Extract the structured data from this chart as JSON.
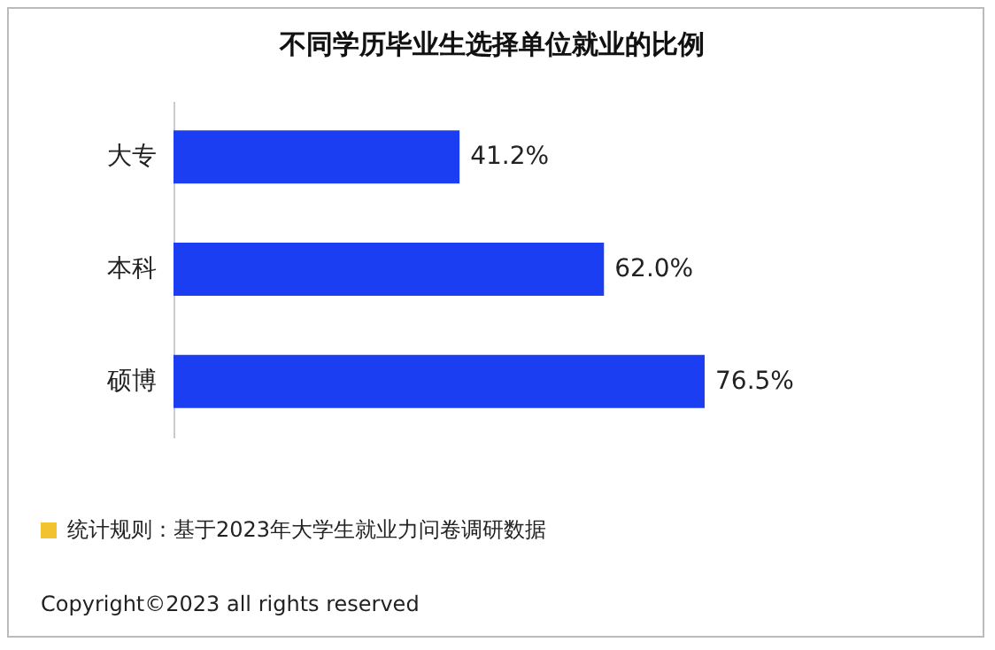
{
  "chart_data": {
    "type": "bar",
    "orientation": "horizontal",
    "title": "不同学历毕业生选择单位就业的比例",
    "categories": [
      "大专",
      "本科",
      "硕博"
    ],
    "values": [
      41.2,
      62.0,
      76.5
    ],
    "value_labels": [
      "41.2%",
      "62.0%",
      "76.5%"
    ],
    "color": "#1c3ef2",
    "annotations": [
      "统计规则：基于2023年大学生就业力问卷调研数据",
      "Copyright©2023 all rights reserved"
    ]
  }
}
